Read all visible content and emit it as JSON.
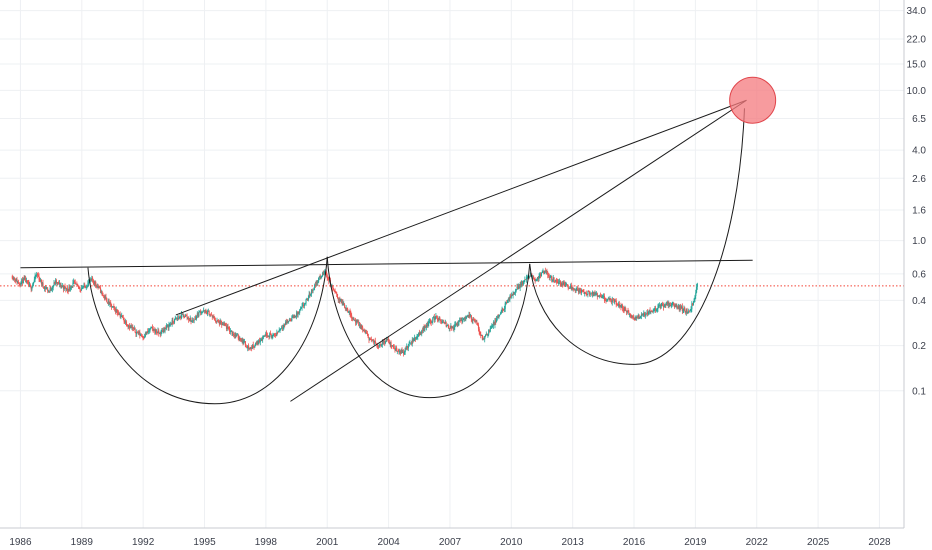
{
  "chart_data": {
    "type": "line",
    "title": "",
    "xlabel": "",
    "ylabel": "",
    "yscale": "log",
    "grid": true,
    "x_ticks": [
      "1986",
      "1989",
      "1992",
      "1995",
      "1998",
      "2001",
      "2004",
      "2007",
      "2010",
      "2013",
      "2016",
      "2019",
      "2022",
      "2025",
      "2028"
    ],
    "y_ticks": [
      "34.0",
      "22.0",
      "15.0",
      "10.0",
      "6.5",
      "4.0",
      "2.6",
      "1.6",
      "1.0",
      "0.6",
      "0.4",
      "0.2",
      "0.1"
    ],
    "xlim": [
      1985,
      2029.2
    ],
    "ylim": [
      0.0122,
      40
    ],
    "reference_price": 0.5,
    "series": [
      {
        "style": "candlestick",
        "points": [
          [
            1985.6,
            0.58
          ],
          [
            1985.9,
            0.52
          ],
          [
            1986.2,
            0.55
          ],
          [
            1986.5,
            0.48
          ],
          [
            1986.8,
            0.6
          ],
          [
            1987.1,
            0.5
          ],
          [
            1987.4,
            0.46
          ],
          [
            1987.7,
            0.53
          ],
          [
            1988.0,
            0.5
          ],
          [
            1988.3,
            0.47
          ],
          [
            1988.6,
            0.52
          ],
          [
            1988.9,
            0.48
          ],
          [
            1989.2,
            0.5
          ],
          [
            1989.5,
            0.55
          ],
          [
            1989.8,
            0.49
          ],
          [
            1990.1,
            0.42
          ],
          [
            1990.4,
            0.37
          ],
          [
            1990.8,
            0.33
          ],
          [
            1991.2,
            0.28
          ],
          [
            1991.6,
            0.25
          ],
          [
            1992.0,
            0.23
          ],
          [
            1992.4,
            0.26
          ],
          [
            1992.8,
            0.24
          ],
          [
            1993.2,
            0.27
          ],
          [
            1993.6,
            0.3
          ],
          [
            1994.0,
            0.32
          ],
          [
            1994.4,
            0.29
          ],
          [
            1994.8,
            0.34
          ],
          [
            1995.2,
            0.33
          ],
          [
            1995.6,
            0.29
          ],
          [
            1996.0,
            0.27
          ],
          [
            1996.4,
            0.24
          ],
          [
            1996.8,
            0.22
          ],
          [
            1997.2,
            0.19
          ],
          [
            1997.6,
            0.21
          ],
          [
            1998.0,
            0.24
          ],
          [
            1998.4,
            0.23
          ],
          [
            1998.8,
            0.27
          ],
          [
            1999.2,
            0.3
          ],
          [
            1999.6,
            0.33
          ],
          [
            2000.0,
            0.4
          ],
          [
            2000.3,
            0.48
          ],
          [
            2000.6,
            0.56
          ],
          [
            2000.9,
            0.62
          ],
          [
            2001.2,
            0.5
          ],
          [
            2001.5,
            0.42
          ],
          [
            2001.9,
            0.36
          ],
          [
            2002.3,
            0.3
          ],
          [
            2002.7,
            0.26
          ],
          [
            2003.1,
            0.22
          ],
          [
            2003.5,
            0.2
          ],
          [
            2003.9,
            0.22
          ],
          [
            2004.3,
            0.19
          ],
          [
            2004.7,
            0.18
          ],
          [
            2005.1,
            0.21
          ],
          [
            2005.5,
            0.24
          ],
          [
            2005.9,
            0.28
          ],
          [
            2006.3,
            0.31
          ],
          [
            2006.7,
            0.28
          ],
          [
            2007.1,
            0.26
          ],
          [
            2007.5,
            0.29
          ],
          [
            2007.9,
            0.32
          ],
          [
            2008.3,
            0.28
          ],
          [
            2008.6,
            0.22
          ],
          [
            2008.9,
            0.25
          ],
          [
            2009.3,
            0.3
          ],
          [
            2009.7,
            0.37
          ],
          [
            2010.1,
            0.45
          ],
          [
            2010.5,
            0.52
          ],
          [
            2010.9,
            0.58
          ],
          [
            2011.2,
            0.55
          ],
          [
            2011.6,
            0.62
          ],
          [
            2012.0,
            0.56
          ],
          [
            2012.4,
            0.52
          ],
          [
            2012.8,
            0.5
          ],
          [
            2013.2,
            0.47
          ],
          [
            2013.6,
            0.45
          ],
          [
            2014.0,
            0.44
          ],
          [
            2014.4,
            0.42
          ],
          [
            2014.8,
            0.4
          ],
          [
            2015.2,
            0.38
          ],
          [
            2015.6,
            0.34
          ],
          [
            2016.0,
            0.3
          ],
          [
            2016.4,
            0.32
          ],
          [
            2016.8,
            0.34
          ],
          [
            2017.2,
            0.36
          ],
          [
            2017.6,
            0.38
          ],
          [
            2018.0,
            0.37
          ],
          [
            2018.4,
            0.35
          ],
          [
            2018.7,
            0.33
          ],
          [
            2019.0,
            0.43
          ],
          [
            2019.1,
            0.52
          ]
        ]
      }
    ],
    "drawings": [
      {
        "kind": "line",
        "from": [
          1986.0,
          0.66
        ],
        "to": [
          2021.8,
          0.74
        ]
      },
      {
        "kind": "line",
        "from": [
          1993.6,
          0.32
        ],
        "to": [
          2021.5,
          8.6
        ]
      },
      {
        "kind": "line",
        "from": [
          1999.2,
          0.085
        ],
        "to": [
          2021.5,
          8.6
        ]
      },
      {
        "kind": "arc",
        "from": [
          1989.3,
          0.66
        ],
        "bottom": [
          1995.5,
          0.082
        ],
        "to": [
          2001.0,
          0.78
        ]
      },
      {
        "kind": "arc",
        "from": [
          2001.0,
          0.78
        ],
        "bottom": [
          2006.0,
          0.09
        ],
        "to": [
          2010.9,
          0.7
        ]
      },
      {
        "kind": "arc",
        "from": [
          2010.9,
          0.7
        ],
        "bottom": [
          2016.0,
          0.15
        ],
        "to": [
          2021.4,
          7.6
        ]
      },
      {
        "kind": "circle",
        "center": [
          2021.8,
          8.6
        ],
        "color": "#f47a7e"
      }
    ],
    "colors": {
      "up": "#26a69a",
      "down": "#ef5350",
      "reference_line": "#f44336",
      "target_fill": "#f47a7e",
      "target_stroke": "#e0454b",
      "drawing": "#1b1b1b",
      "grid": "#eef0f3",
      "axis_text": "#3a3e4a"
    }
  }
}
